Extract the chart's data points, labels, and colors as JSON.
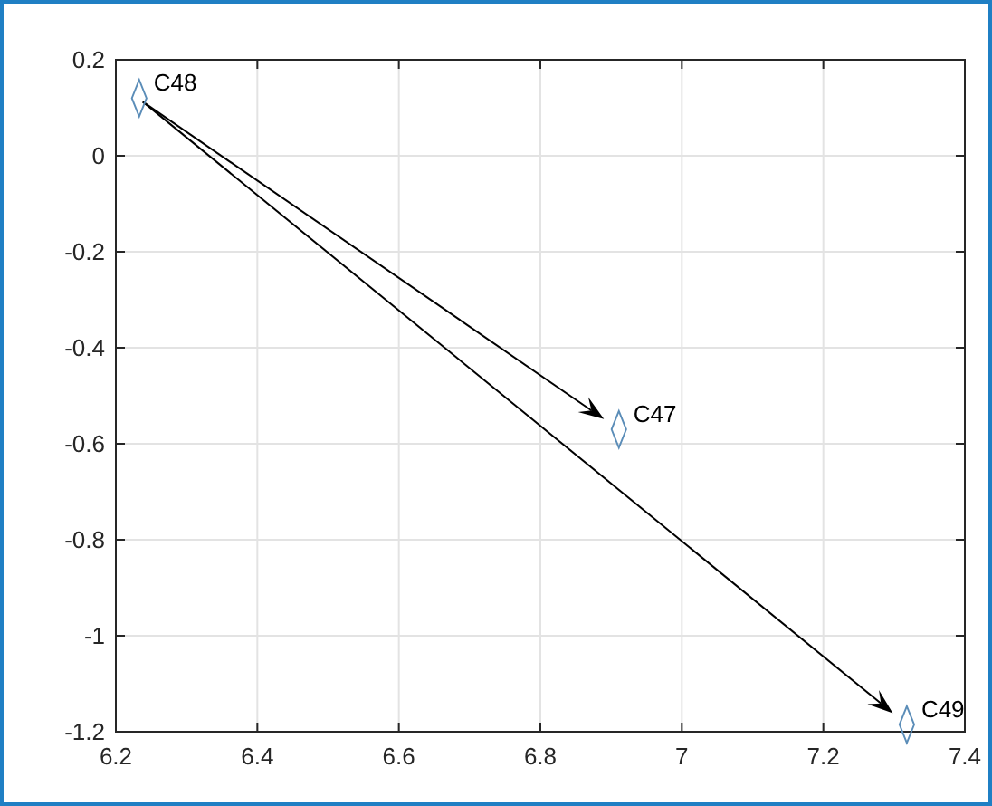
{
  "chart_data": {
    "type": "scatter",
    "x": [
      6.233,
      6.911,
      7.318
    ],
    "series": [
      {
        "color": "#5b8db8",
        "values": [
          0.12,
          -0.57,
          -1.185
        ]
      }
    ],
    "marker": "diamond",
    "grid": true,
    "xlim": [
      6.2,
      7.4
    ],
    "xticks": [
      6.2,
      6.4,
      6.6,
      6.8,
      7,
      7.2,
      7.4
    ],
    "ylim": [
      -1.2,
      0.2
    ],
    "yticks": [
      -1.2,
      -1,
      -0.8,
      -0.6,
      -0.4,
      -0.2,
      0,
      0.2
    ],
    "annotations": [
      {
        "text": "C48",
        "x": 6.233,
        "y": 0.12
      },
      {
        "text": "C47",
        "x": 6.911,
        "y": -0.57
      },
      {
        "text": "C49",
        "x": 7.318,
        "y": -1.185
      }
    ]
  }
}
